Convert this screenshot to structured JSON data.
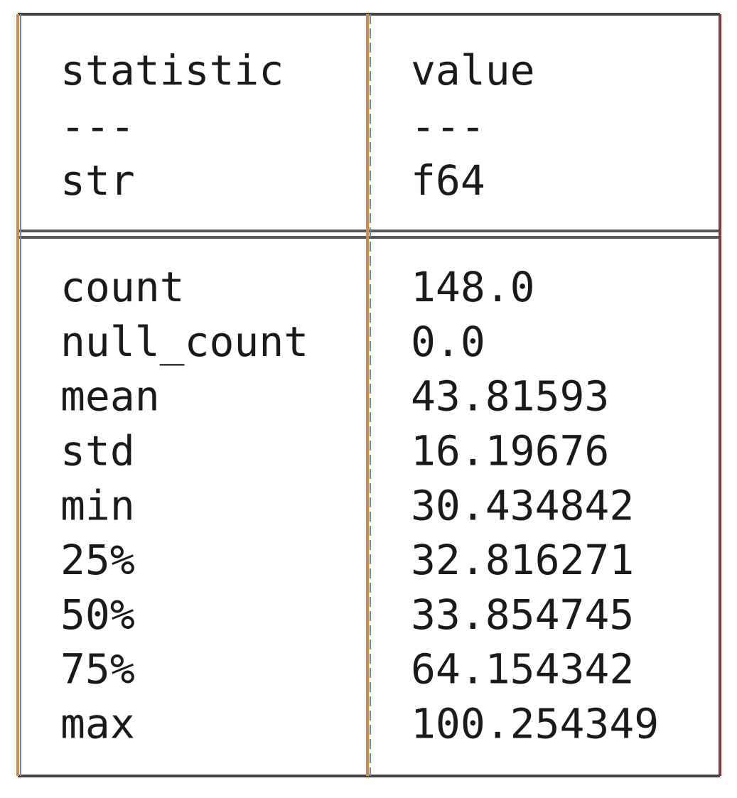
{
  "table": {
    "columns": [
      "statistic",
      "value"
    ],
    "separators": [
      "---",
      "---"
    ],
    "dtypes": [
      "str",
      "f64"
    ],
    "rows": [
      [
        "count",
        "148.0"
      ],
      [
        "null_count",
        "0.0"
      ],
      [
        "mean",
        "43.81593"
      ],
      [
        "std",
        "16.19676"
      ],
      [
        "min",
        "30.434842"
      ],
      [
        "25%",
        "32.816271"
      ],
      [
        "50%",
        "33.854745"
      ],
      [
        "75%",
        "64.154342"
      ],
      [
        "max",
        "100.254349"
      ]
    ]
  }
}
